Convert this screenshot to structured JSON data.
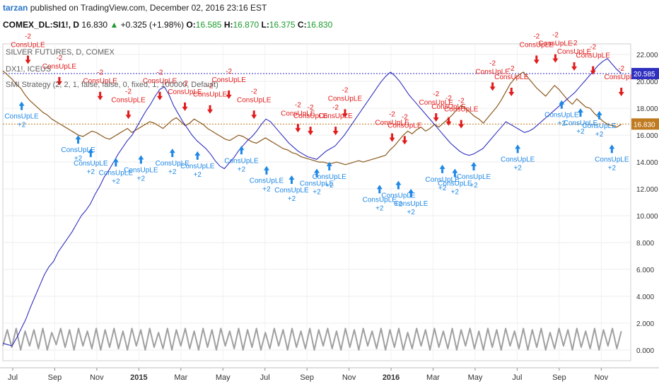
{
  "header": {
    "author": "tarzan",
    "published_text": "published on TradingView.com, December 02, 2016 23:16 EST"
  },
  "symbol_bar": {
    "symbol": "COMEX_DL:SI1!",
    "interval": "D",
    "price": "16.830",
    "change": "+0.325 (+1.98%)",
    "o_label": "O:",
    "o": "16.585",
    "h_label": "H:",
    "h": "16.870",
    "l_label": "L:",
    "l": "16.375",
    "c_label": "C:",
    "c": "16.830"
  },
  "legend": {
    "line1": "SILVER FUTURES, D, COMEX",
    "line2": "DX1!, ICEUS",
    "line3": "SMI Strategy (2, 2, 1, false, false, 0, fixed, 1, 100000, Default)"
  },
  "colors": {
    "price_line": "#8b5a1e",
    "equity_line": "#3030c0",
    "position_line": "#a0a0a0",
    "signal_buy": "#1e88e5",
    "signal_sell": "#e21b1b",
    "price_marker_line": "#c07a20",
    "equity_marker_line": "#3030c0"
  },
  "chart_data": {
    "type": "line",
    "y_axis": {
      "ticks": [
        "0.000",
        "2.000",
        "4.000",
        "6.000",
        "8.000",
        "10.000",
        "12.000",
        "14.000",
        "16.000",
        "18.000",
        "20.000",
        "22.000"
      ],
      "ylim": [
        -0.8,
        22.8
      ],
      "price_label": "16.830",
      "equity_label": "20.585"
    },
    "x_axis": {
      "ticks": [
        "Jul",
        "Sep",
        "Nov",
        "2015",
        "Mar",
        "May",
        "Jul",
        "Sep",
        "Nov",
        "2016",
        "Mar",
        "May",
        "Jul",
        "Sep",
        "Nov"
      ],
      "bold_ticks": [
        "2015",
        "2016"
      ]
    },
    "reference_lines": {
      "price": 16.83,
      "equity": 20.585
    },
    "price_series": [
      20.8,
      20.5,
      20.2,
      19.8,
      19.5,
      19.0,
      18.6,
      18.3,
      18.0,
      17.7,
      17.5,
      17.2,
      17.0,
      16.8,
      16.6,
      16.4,
      16.2,
      16.0,
      15.9,
      16.1,
      16.3,
      16.2,
      16.0,
      15.8,
      15.7,
      15.9,
      16.1,
      16.3,
      16.5,
      16.2,
      16.4,
      16.6,
      16.8,
      17.0,
      16.9,
      16.7,
      16.5,
      16.8,
      17.1,
      17.3,
      17.0,
      16.7,
      16.9,
      17.2,
      17.0,
      16.8,
      16.5,
      16.3,
      16.1,
      15.9,
      15.7,
      15.6,
      15.8,
      16.0,
      15.9,
      15.7,
      15.5,
      15.4,
      15.6,
      15.8,
      15.6,
      15.4,
      15.2,
      15.0,
      14.9,
      14.7,
      14.6,
      14.4,
      14.3,
      14.2,
      14.1,
      14.0,
      14.0,
      13.9,
      13.9,
      14.0,
      13.9,
      13.8,
      13.9,
      14.0,
      14.1,
      14.0,
      14.1,
      14.2,
      14.3,
      14.4,
      14.5,
      14.9,
      15.2,
      15.6,
      16.0,
      16.3,
      16.1,
      16.4,
      16.6,
      16.3,
      16.5,
      16.8,
      16.6,
      16.9,
      17.2,
      17.5,
      17.9,
      18.2,
      18.0,
      17.7,
      17.4,
      17.2,
      16.9,
      17.3,
      17.7,
      18.1,
      18.6,
      19.2,
      19.8,
      20.2,
      20.5,
      20.7,
      20.3,
      19.9,
      19.5,
      19.2,
      18.9,
      19.3,
      19.7,
      19.4,
      19.0,
      18.6,
      18.3,
      18.7,
      18.4,
      18.1,
      18.0,
      17.6,
      17.3,
      17.0,
      16.8,
      16.7,
      16.6,
      16.8
    ],
    "equity_series": [
      0.5,
      0.4,
      0.3,
      0.9,
      1.6,
      2.3,
      3.2,
      4.0,
      4.8,
      5.6,
      6.2,
      6.6,
      7.3,
      7.8,
      8.3,
      8.8,
      9.4,
      10.0,
      10.4,
      10.9,
      11.6,
      12.2,
      12.9,
      13.4,
      14.0,
      14.6,
      15.1,
      15.6,
      16.0,
      16.6,
      17.2,
      17.8,
      18.3,
      18.9,
      19.4,
      19.6,
      19.0,
      18.2,
      17.6,
      17.0,
      16.5,
      16.0,
      15.6,
      15.3,
      15.0,
      14.6,
      14.1,
      13.7,
      13.5,
      13.9,
      14.3,
      14.8,
      15.2,
      15.6,
      15.9,
      16.3,
      16.8,
      17.2,
      17.0,
      16.6,
      16.2,
      15.8,
      15.4,
      15.1,
      14.8,
      14.6,
      14.4,
      14.3,
      14.2,
      14.5,
      14.8,
      15.0,
      15.2,
      15.6,
      16.0,
      16.5,
      17.0,
      17.5,
      18.0,
      18.5,
      19.0,
      19.5,
      20.0,
      20.4,
      20.7,
      20.4,
      20.0,
      19.5,
      19.0,
      18.6,
      18.2,
      17.8,
      17.4,
      17.0,
      16.6,
      16.2,
      15.8,
      15.4,
      15.1,
      14.8,
      14.6,
      14.5,
      14.6,
      14.8,
      15.0,
      15.4,
      15.8,
      16.2,
      16.6,
      17.0,
      16.8,
      16.6,
      16.4,
      16.2,
      16.3,
      16.5,
      16.8,
      17.1,
      17.4,
      17.7,
      18.0,
      18.3,
      18.6,
      18.9,
      19.2,
      19.6,
      20.0,
      20.4,
      20.8,
      21.2,
      21.5,
      21.7,
      21.3,
      20.9,
      20.6
    ],
    "position_series": [
      0.3,
      1.5,
      0.2,
      1.6,
      0.0,
      1.4,
      0.3,
      1.5,
      0.1,
      1.6,
      0.0,
      1.3,
      0.4,
      1.6,
      0.2,
      1.5,
      0.0,
      1.6,
      0.3,
      1.4,
      0.1,
      1.6,
      0.0,
      1.5,
      0.2,
      1.6,
      0.1,
      1.4,
      0.0,
      1.6,
      0.3,
      1.5,
      0.0,
      1.6,
      0.2,
      1.3,
      0.1,
      1.6,
      0.0,
      1.5,
      0.3,
      1.6,
      0.1,
      1.4,
      0.0,
      1.6,
      0.2,
      1.5,
      0.0,
      1.6,
      0.3,
      1.4,
      0.1,
      1.6,
      0.0,
      1.5,
      0.2,
      1.6,
      0.0,
      1.3,
      0.1,
      1.6,
      0.3,
      1.5,
      0.0,
      1.6,
      0.2,
      1.4,
      0.1,
      1.6,
      0.0,
      1.5,
      0.3,
      1.6,
      0.1,
      1.4,
      0.0,
      1.6,
      0.2,
      1.5,
      0.0,
      1.6,
      0.3,
      1.4,
      0.1,
      1.6,
      0.0,
      1.5,
      0.2,
      1.6,
      0.0,
      1.3,
      0.1,
      1.6,
      0.3,
      1.5,
      0.0,
      1.6,
      0.2,
      1.4,
      0.1,
      1.6,
      0.0,
      1.5,
      0.3,
      1.6,
      0.1,
      1.4,
      0.0,
      1.6,
      0.2,
      1.5,
      0.0,
      1.6,
      0.3,
      1.4,
      0.1,
      1.6,
      0.0,
      1.5,
      0.2,
      1.6,
      0.0,
      1.3,
      0.1,
      1.6,
      0.3,
      1.5,
      0.0,
      1.6,
      0.2,
      1.4,
      0.1,
      1.6,
      0.0,
      1.5,
      0.3,
      1.6,
      0.1,
      1.4
    ],
    "signals": [
      {
        "t": 0.04,
        "type": "sell",
        "y": 21.3
      },
      {
        "t": 0.03,
        "type": "buy",
        "y": 18.5
      },
      {
        "t": 0.09,
        "type": "sell",
        "y": 19.7
      },
      {
        "t": 0.12,
        "type": "buy",
        "y": 16.0
      },
      {
        "t": 0.14,
        "type": "buy",
        "y": 15.0
      },
      {
        "t": 0.155,
        "type": "sell",
        "y": 18.6
      },
      {
        "t": 0.18,
        "type": "buy",
        "y": 14.3
      },
      {
        "t": 0.2,
        "type": "sell",
        "y": 17.2
      },
      {
        "t": 0.22,
        "type": "buy",
        "y": 14.5
      },
      {
        "t": 0.25,
        "type": "sell",
        "y": 18.6
      },
      {
        "t": 0.27,
        "type": "buy",
        "y": 15.0
      },
      {
        "t": 0.29,
        "type": "sell",
        "y": 17.8
      },
      {
        "t": 0.31,
        "type": "buy",
        "y": 14.8
      },
      {
        "t": 0.33,
        "type": "sell",
        "y": 17.6
      },
      {
        "t": 0.36,
        "type": "sell",
        "y": 18.7
      },
      {
        "t": 0.38,
        "type": "buy",
        "y": 15.2
      },
      {
        "t": 0.4,
        "type": "sell",
        "y": 17.2
      },
      {
        "t": 0.42,
        "type": "buy",
        "y": 13.7
      },
      {
        "t": 0.46,
        "type": "buy",
        "y": 13.0
      },
      {
        "t": 0.47,
        "type": "sell",
        "y": 16.2
      },
      {
        "t": 0.49,
        "type": "sell",
        "y": 16.0
      },
      {
        "t": 0.5,
        "type": "buy",
        "y": 13.5
      },
      {
        "t": 0.52,
        "type": "buy",
        "y": 14.0
      },
      {
        "t": 0.53,
        "type": "sell",
        "y": 16.0
      },
      {
        "t": 0.545,
        "type": "sell",
        "y": 17.3
      },
      {
        "t": 0.6,
        "type": "buy",
        "y": 12.3
      },
      {
        "t": 0.62,
        "type": "sell",
        "y": 15.5
      },
      {
        "t": 0.63,
        "type": "buy",
        "y": 12.6
      },
      {
        "t": 0.64,
        "type": "sell",
        "y": 15.3
      },
      {
        "t": 0.65,
        "type": "buy",
        "y": 12.0
      },
      {
        "t": 0.69,
        "type": "sell",
        "y": 17.0
      },
      {
        "t": 0.7,
        "type": "buy",
        "y": 13.8
      },
      {
        "t": 0.71,
        "type": "sell",
        "y": 16.7
      },
      {
        "t": 0.72,
        "type": "buy",
        "y": 13.5
      },
      {
        "t": 0.73,
        "type": "sell",
        "y": 16.5
      },
      {
        "t": 0.75,
        "type": "buy",
        "y": 14.0
      },
      {
        "t": 0.78,
        "type": "sell",
        "y": 19.3
      },
      {
        "t": 0.81,
        "type": "sell",
        "y": 18.9
      },
      {
        "t": 0.82,
        "type": "buy",
        "y": 15.3
      },
      {
        "t": 0.85,
        "type": "sell",
        "y": 21.3
      },
      {
        "t": 0.88,
        "type": "sell",
        "y": 21.4
      },
      {
        "t": 0.89,
        "type": "buy",
        "y": 18.6
      },
      {
        "t": 0.91,
        "type": "sell",
        "y": 20.8
      },
      {
        "t": 0.92,
        "type": "buy",
        "y": 18.0
      },
      {
        "t": 0.94,
        "type": "sell",
        "y": 20.5
      },
      {
        "t": 0.95,
        "type": "buy",
        "y": 17.8
      },
      {
        "t": 0.985,
        "type": "sell",
        "y": 18.9
      },
      {
        "t": 0.97,
        "type": "buy",
        "y": 15.3
      }
    ],
    "signal_labels": {
      "buy_text": "ConsUpLE",
      "buy_qty": "+2",
      "sell_text": "ConsUpLE",
      "sell_qty": "-2"
    }
  }
}
